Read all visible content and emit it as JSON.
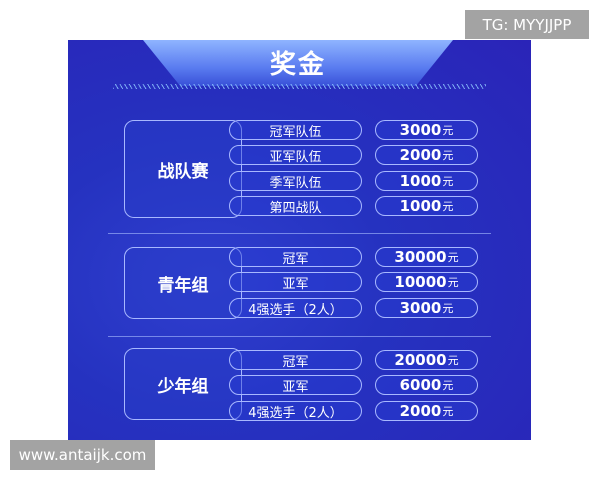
{
  "title": "奖金",
  "currency": "元",
  "sections": [
    {
      "category": "战队赛",
      "rows": [
        {
          "name": "冠军队伍",
          "amount": "3000"
        },
        {
          "name": "亚军队伍",
          "amount": "2000"
        },
        {
          "name": "季军队伍",
          "amount": "1000"
        },
        {
          "name": "第四战队",
          "amount": "1000"
        }
      ]
    },
    {
      "category": "青年组",
      "rows": [
        {
          "name": "冠军",
          "amount": "30000"
        },
        {
          "name": "亚军",
          "amount": "10000"
        },
        {
          "name": "4强选手（2人）",
          "amount": "3000"
        }
      ]
    },
    {
      "category": "少年组",
      "rows": [
        {
          "name": "冠军",
          "amount": "20000"
        },
        {
          "name": "亚军",
          "amount": "6000"
        },
        {
          "name": "4强选手（2人）",
          "amount": "2000"
        }
      ]
    }
  ],
  "watermarks": {
    "tg": "TG: MYYJJPP",
    "url": "www.antaijk.com"
  },
  "colors": {
    "background": "#2a32c0",
    "border": "#a8b8ff",
    "text": "#ffffff"
  }
}
